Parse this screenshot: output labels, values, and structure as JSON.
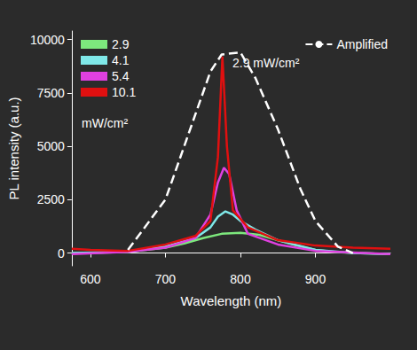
{
  "chart_data": {
    "type": "line",
    "x_label": "Wavelength (nm)",
    "y_label": "PL intensity (a.u.)",
    "xlim": [
      575,
      1000
    ],
    "xticks": [
      600,
      700,
      800,
      900
    ],
    "ylim": [
      -600,
      10400
    ],
    "yticks": [
      0,
      2500,
      5000,
      7500,
      10000
    ],
    "grid": false,
    "legend": "upper left",
    "annotations": [
      {
        "text": "mW/cm²"
      },
      {
        "text": "2.9 mW/cm²"
      }
    ],
    "series": [
      {
        "name": "2.9",
        "color": "#7de87d",
        "line_style": "solid",
        "x": [
          575,
          600,
          650,
          700,
          725,
          750,
          775,
          800,
          825,
          850,
          875,
          900,
          925,
          950,
          1000
        ],
        "values": [
          0,
          0,
          50,
          250,
          450,
          700,
          900,
          950,
          850,
          600,
          350,
          150,
          50,
          0,
          -50
        ]
      },
      {
        "name": "4.1",
        "color": "#7fe8e8",
        "line_style": "solid",
        "x": [
          575,
          650,
          700,
          740,
          760,
          770,
          780,
          790,
          800,
          820,
          850,
          900,
          950,
          1000
        ],
        "values": [
          0,
          50,
          300,
          700,
          1200,
          1700,
          1950,
          1800,
          1500,
          1100,
          600,
          150,
          0,
          -50
        ]
      },
      {
        "name": "5.4",
        "color": "#e040e0",
        "line_style": "solid",
        "x": [
          575,
          650,
          700,
          740,
          760,
          770,
          778,
          785,
          795,
          810,
          850,
          900,
          1000
        ],
        "values": [
          -50,
          50,
          250,
          700,
          1800,
          3300,
          4000,
          3700,
          2000,
          900,
          400,
          100,
          -50
        ]
      },
      {
        "name": "10.1",
        "color": "#e01010",
        "line_style": "solid",
        "x": [
          575,
          600,
          650,
          700,
          740,
          760,
          770,
          776,
          782,
          790,
          810,
          850,
          900,
          950,
          1000
        ],
        "values": [
          200,
          150,
          100,
          400,
          800,
          1500,
          4500,
          9200,
          5000,
          2000,
          1200,
          600,
          350,
          250,
          200
        ]
      },
      {
        "name": "Amplified",
        "color": "#ffffff",
        "line_style": "dashed",
        "x": [
          650,
          700,
          740,
          760,
          775,
          800,
          820,
          850,
          880,
          900,
          930,
          950
        ],
        "values": [
          150,
          2500,
          6500,
          8500,
          9300,
          9400,
          8200,
          5800,
          3000,
          1500,
          300,
          0
        ]
      }
    ]
  }
}
